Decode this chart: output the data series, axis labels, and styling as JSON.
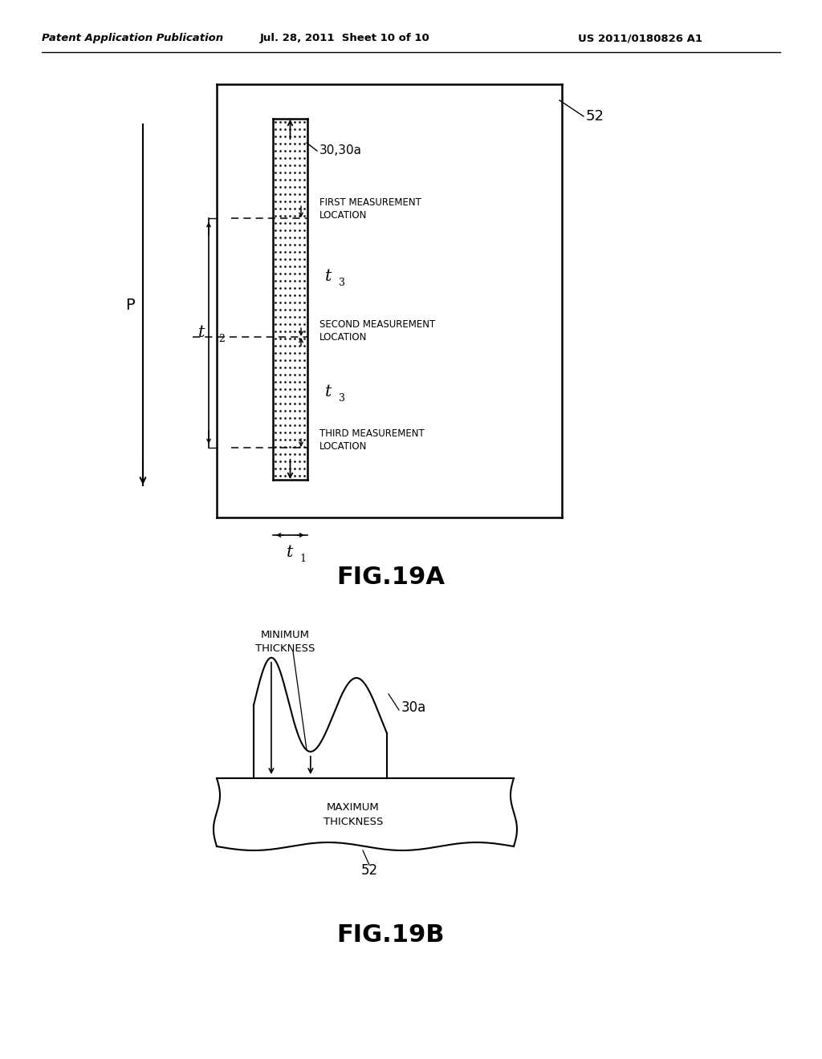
{
  "bg_color": "#ffffff",
  "header_left": "Patent Application Publication",
  "header_mid": "Jul. 28, 2011  Sheet 10 of 10",
  "header_right": "US 2011/0180826 A1",
  "fig19a_label": "FIG.19A",
  "fig19b_label": "FIG.19B",
  "label_52_top": "52",
  "label_30_30a": "30,30a",
  "label_t1": "t",
  "label_t2": "t",
  "label_t3_upper": "t",
  "label_t3_lower": "t",
  "label_P": "P",
  "label_first": "FIRST MEASUREMENT\nLOCATION",
  "label_second": "SECOND MEASUREMENT\nLOCATION",
  "label_third": "THIRD MEASUREMENT\nLOCATION",
  "label_30a": "30a",
  "label_min_thickness": "MINIMUM\nTHICKNESS",
  "label_max_thickness": "MAXIMUM\nTHICKNESS",
  "label_52_bottom": "52"
}
